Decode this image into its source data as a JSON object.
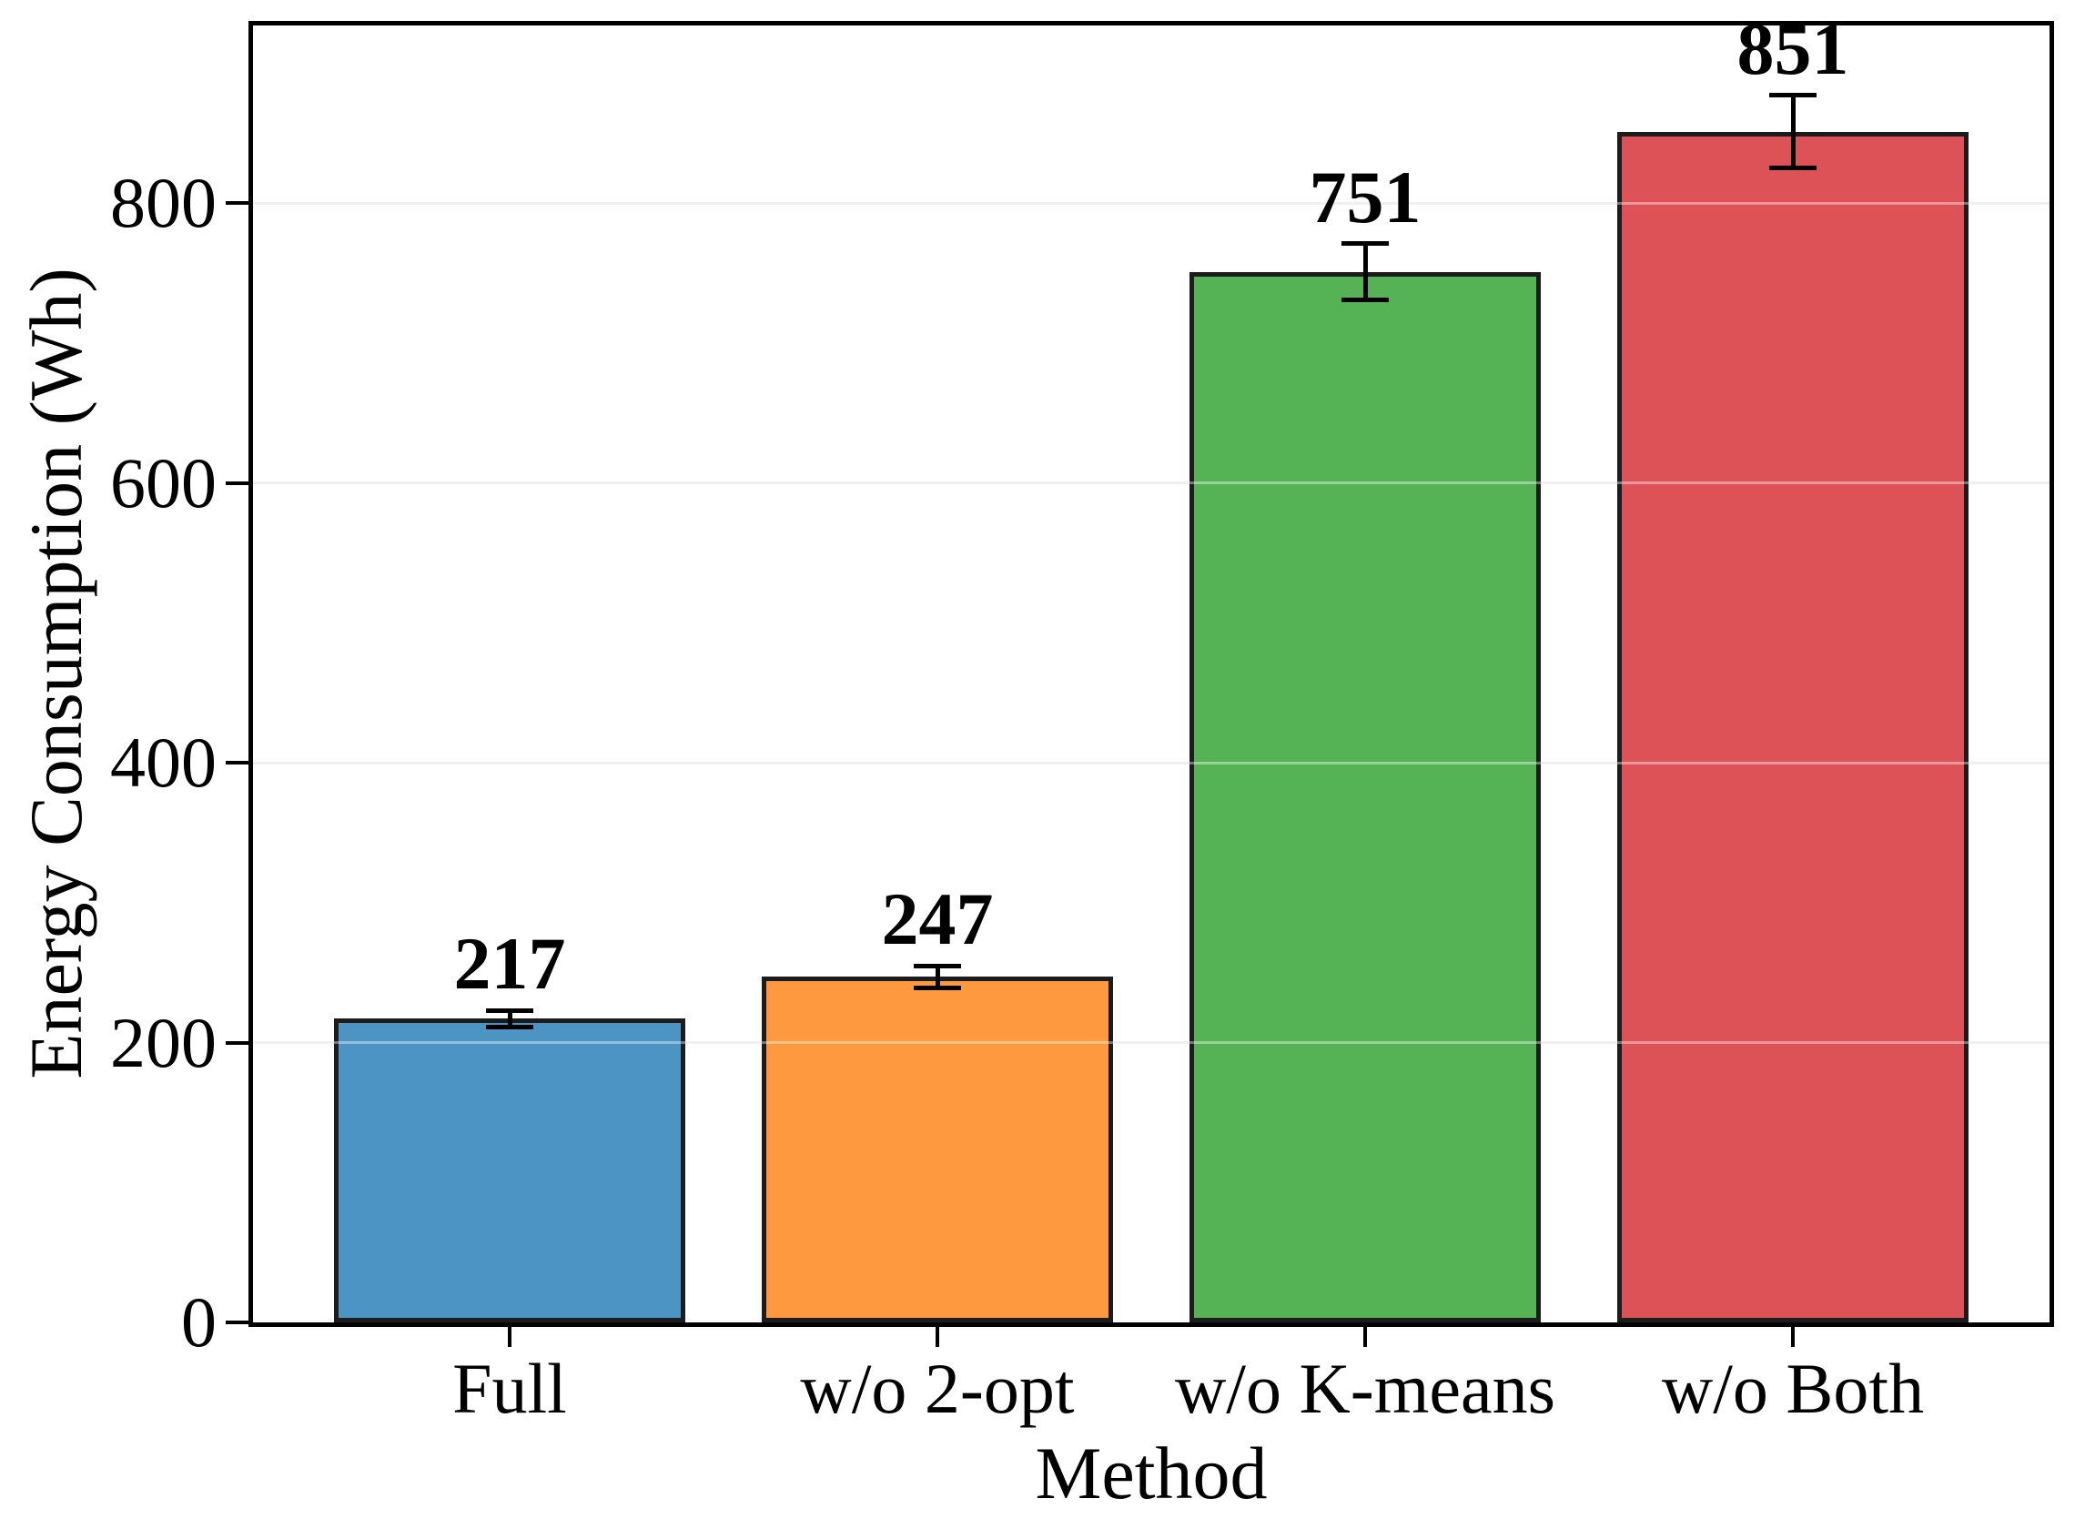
{
  "chart_data": {
    "type": "bar",
    "title": "",
    "xlabel": "Method",
    "ylabel": "Energy Consumption (Wh)",
    "categories": [
      "Full",
      "w/o 2-opt",
      "w/o K-means",
      "w/o Both"
    ],
    "values": [
      217,
      247,
      751,
      851
    ],
    "errors": [
      6,
      8,
      20,
      26
    ],
    "value_labels": [
      "217",
      "247",
      "751",
      "851"
    ],
    "bar_colors": [
      "#4C94C4",
      "#FF9940",
      "#55B255",
      "#DC5256"
    ],
    "bar_edge_color": "#1C1C1C",
    "error_bar_color": "#000000",
    "grid_color": "#E7E7E7",
    "yticks": [
      0,
      200,
      400,
      600,
      800
    ],
    "ylim": [
      0,
      927
    ],
    "grid": "horizontal",
    "legend": "none"
  }
}
